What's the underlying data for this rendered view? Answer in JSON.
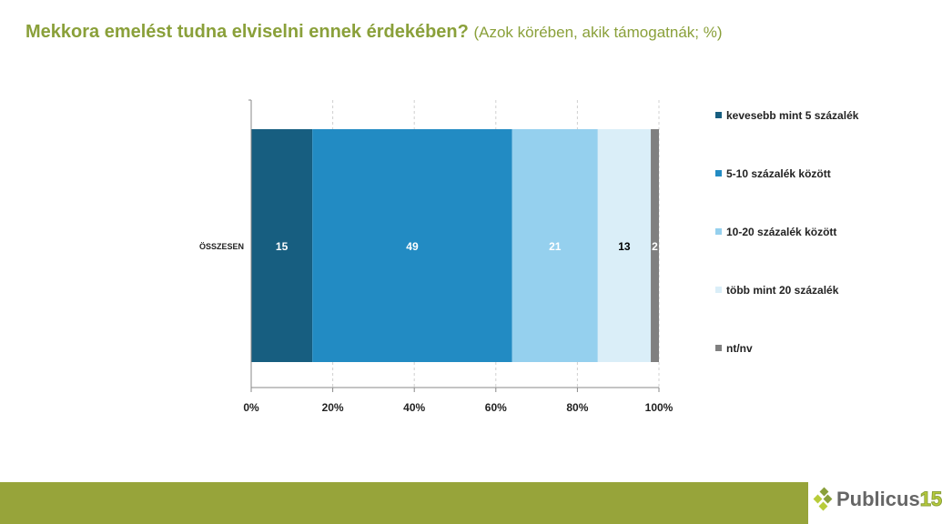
{
  "title": {
    "main": "Mekkora emelést tudna elviselni ennek érdekében?",
    "sub": "(Azok körében, akik támogatnák; %)"
  },
  "chart_data": {
    "type": "bar",
    "orientation": "horizontal-stacked-100",
    "categories": [
      "ÖSSZESEN"
    ],
    "series": [
      {
        "name": "kevesebb mint 5 százalék",
        "values": [
          15
        ],
        "color": "#175e80",
        "label_color": "#ffffff"
      },
      {
        "name": "5-10 százalék között",
        "values": [
          49
        ],
        "color": "#228bc3",
        "label_color": "#ffffff"
      },
      {
        "name": "10-20 százalék között",
        "values": [
          21
        ],
        "color": "#95d0ee",
        "label_color": "#ffffff"
      },
      {
        "name": "több mint 20 százalék",
        "values": [
          13
        ],
        "color": "#daeef8",
        "label_color": "#000000"
      },
      {
        "name": "nt/nv",
        "values": [
          2
        ],
        "color": "#808080",
        "label_color": "#ffffff"
      }
    ],
    "xticks": [
      "0%",
      "20%",
      "40%",
      "60%",
      "80%",
      "100%"
    ],
    "xlim": [
      0,
      100
    ],
    "grid": true,
    "legend": "right"
  },
  "footer": {
    "logo_text": "Publicus",
    "logo_number": "15"
  }
}
